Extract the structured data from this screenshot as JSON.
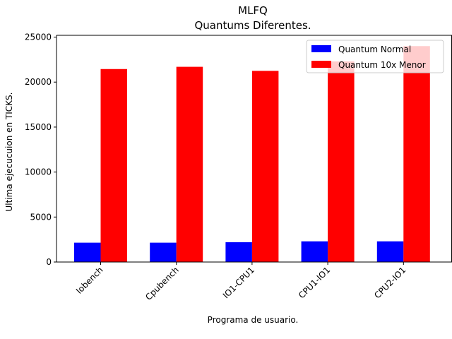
{
  "chart_data": {
    "type": "bar",
    "title": "MLFQ",
    "subtitle": "Quantums Diferentes.",
    "xlabel": "Programa de usuario.",
    "ylabel": "Ultima ejecucuion en TICKS.",
    "categories": [
      "Iobench",
      "Cpubench",
      "IO1-CPU1",
      "CPU1-IO1",
      "CPU2-IO1"
    ],
    "series": [
      {
        "name": "Quantum Normal",
        "color": "#0000ff",
        "values": [
          2150,
          2150,
          2200,
          2300,
          2300
        ]
      },
      {
        "name": "Quantum 10x Menor",
        "color": "#ff0000",
        "values": [
          21450,
          21700,
          21250,
          22300,
          24000
        ]
      }
    ],
    "ylim": [
      0,
      25200
    ],
    "yticks": [
      0,
      5000,
      10000,
      15000,
      20000,
      25000
    ],
    "grid": false,
    "legend_position": "top-right"
  }
}
